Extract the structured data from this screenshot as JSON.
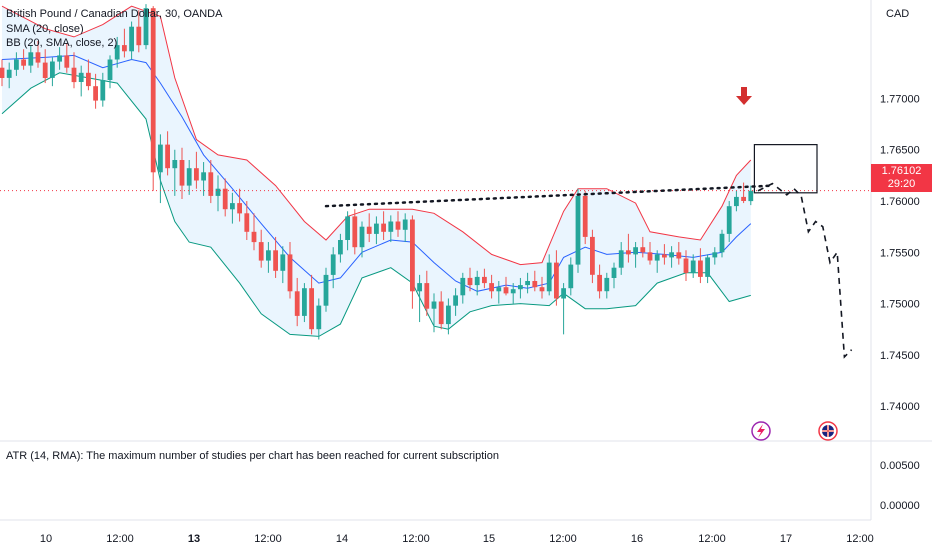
{
  "header": {
    "title": "British Pound / Canadian Dollar, 30, OANDA",
    "indicator_sma": "SMA (20, close)",
    "indicator_bb": "BB (20, SMA, close, 2)",
    "currency": "CAD"
  },
  "price_tag": {
    "price": "1.76102",
    "countdown": "29:20"
  },
  "atr_panel": {
    "note": "ATR (14, RMA): The maximum number of studies per chart has been reached for current subscription"
  },
  "colors": {
    "up": "#26a69a",
    "down": "#ef5350",
    "bb_upper": "#f23645",
    "bb_lower": "#089981",
    "sma": "#2962ff",
    "bb_fill": "#e3f2fd",
    "arrow": "#d32f2f"
  },
  "chart_data": [
    {
      "type": "candlestick",
      "title": "British Pound / Canadian Dollar, 30, OANDA",
      "y_axis_ticks": [
        "1.77000",
        "1.76500",
        "1.76000",
        "1.75500",
        "1.75000",
        "1.74500",
        "1.74000"
      ],
      "x_axis_ticks": [
        "10",
        "12:00",
        "13",
        "12:00",
        "14",
        "12:00",
        "15",
        "12:00",
        "16",
        "12:00",
        "17",
        "12:00"
      ],
      "ylim": [
        1.7367,
        1.7796
      ],
      "current_price": 1.76102,
      "key_levels": {
        "neckline_from": 1.7595,
        "neckline_to": 1.7615,
        "box_top": 1.7655,
        "box_bottom": 1.7608,
        "projection_target": 1.7448
      },
      "candles": [
        [
          1.773,
          1.7738,
          1.7712,
          1.772
        ],
        [
          1.772,
          1.7735,
          1.771,
          1.7728
        ],
        [
          1.7728,
          1.7745,
          1.7722,
          1.7738
        ],
        [
          1.7738,
          1.7748,
          1.7728,
          1.7732
        ],
        [
          1.7732,
          1.7752,
          1.7725,
          1.7745
        ],
        [
          1.7745,
          1.7756,
          1.773,
          1.7735
        ],
        [
          1.7735,
          1.7748,
          1.7715,
          1.772
        ],
        [
          1.772,
          1.774,
          1.7712,
          1.7736
        ],
        [
          1.7736,
          1.775,
          1.7728,
          1.7742
        ],
        [
          1.7742,
          1.7754,
          1.7725,
          1.773
        ],
        [
          1.773,
          1.7745,
          1.771,
          1.7716
        ],
        [
          1.7716,
          1.7732,
          1.7702,
          1.7725
        ],
        [
          1.7725,
          1.7738,
          1.7708,
          1.7712
        ],
        [
          1.7712,
          1.7724,
          1.769,
          1.7698
        ],
        [
          1.7698,
          1.7725,
          1.7692,
          1.7718
        ],
        [
          1.7718,
          1.7742,
          1.771,
          1.7738
        ],
        [
          1.7738,
          1.776,
          1.773,
          1.7752
        ],
        [
          1.7752,
          1.7768,
          1.774,
          1.7746
        ],
        [
          1.7746,
          1.7775,
          1.7738,
          1.777
        ],
        [
          1.777,
          1.7786,
          1.7745,
          1.7752
        ],
        [
          1.7752,
          1.7792,
          1.7748,
          1.7788
        ],
        [
          1.7788,
          1.779,
          1.761,
          1.7628
        ],
        [
          1.7628,
          1.7665,
          1.7598,
          1.7655
        ],
        [
          1.7655,
          1.7668,
          1.7625,
          1.7632
        ],
        [
          1.7632,
          1.765,
          1.7605,
          1.764
        ],
        [
          1.764,
          1.7652,
          1.7602,
          1.7615
        ],
        [
          1.7615,
          1.764,
          1.7606,
          1.7632
        ],
        [
          1.7632,
          1.7648,
          1.7612,
          1.762
        ],
        [
          1.762,
          1.7638,
          1.7605,
          1.7628
        ],
        [
          1.7628,
          1.764,
          1.7598,
          1.7605
        ],
        [
          1.7605,
          1.7625,
          1.759,
          1.7612
        ],
        [
          1.7612,
          1.7622,
          1.7585,
          1.7592
        ],
        [
          1.7592,
          1.7608,
          1.7578,
          1.7598
        ],
        [
          1.7598,
          1.7612,
          1.758,
          1.7588
        ],
        [
          1.7588,
          1.76,
          1.7562,
          1.757
        ],
        [
          1.757,
          1.7588,
          1.7552,
          1.756
        ],
        [
          1.756,
          1.7572,
          1.7535,
          1.7542
        ],
        [
          1.7542,
          1.756,
          1.753,
          1.7552
        ],
        [
          1.7552,
          1.7565,
          1.7525,
          1.7532
        ],
        [
          1.7532,
          1.7556,
          1.752,
          1.7548
        ],
        [
          1.7548,
          1.756,
          1.7505,
          1.7512
        ],
        [
          1.7512,
          1.7525,
          1.7478,
          1.7488
        ],
        [
          1.7488,
          1.752,
          1.7482,
          1.7515
        ],
        [
          1.7515,
          1.7528,
          1.747,
          1.7475
        ],
        [
          1.7475,
          1.7505,
          1.7465,
          1.7498
        ],
        [
          1.7498,
          1.7535,
          1.7492,
          1.7528
        ],
        [
          1.7528,
          1.7555,
          1.7515,
          1.7548
        ],
        [
          1.7548,
          1.7568,
          1.754,
          1.7562
        ],
        [
          1.7562,
          1.759,
          1.7552,
          1.7585
        ],
        [
          1.7585,
          1.7592,
          1.7548,
          1.7555
        ],
        [
          1.7555,
          1.758,
          1.7545,
          1.7575
        ],
        [
          1.7575,
          1.7588,
          1.756,
          1.7568
        ],
        [
          1.7568,
          1.7585,
          1.7558,
          1.7578
        ],
        [
          1.7578,
          1.759,
          1.7562,
          1.757
        ],
        [
          1.757,
          1.7586,
          1.756,
          1.758
        ],
        [
          1.758,
          1.759,
          1.7565,
          1.7572
        ],
        [
          1.7572,
          1.7588,
          1.756,
          1.7582
        ],
        [
          1.7582,
          1.7586,
          1.7495,
          1.7512
        ],
        [
          1.7512,
          1.7528,
          1.7482,
          1.752
        ],
        [
          1.752,
          1.7532,
          1.7488,
          1.7495
        ],
        [
          1.7495,
          1.751,
          1.7472,
          1.7502
        ],
        [
          1.7502,
          1.7512,
          1.7475,
          1.748
        ],
        [
          1.748,
          1.7505,
          1.747,
          1.7498
        ],
        [
          1.7498,
          1.7515,
          1.7488,
          1.7508
        ],
        [
          1.7508,
          1.753,
          1.75,
          1.7525
        ],
        [
          1.7525,
          1.7535,
          1.7512,
          1.7518
        ],
        [
          1.7518,
          1.7532,
          1.7508,
          1.7526
        ],
        [
          1.7526,
          1.7534,
          1.7515,
          1.752
        ],
        [
          1.752,
          1.7528,
          1.7505,
          1.7512
        ],
        [
          1.7512,
          1.7522,
          1.75,
          1.7516
        ],
        [
          1.7516,
          1.7526,
          1.7508,
          1.751
        ],
        [
          1.751,
          1.752,
          1.75,
          1.7514
        ],
        [
          1.7514,
          1.7525,
          1.7505,
          1.7518
        ],
        [
          1.7518,
          1.753,
          1.751,
          1.7522
        ],
        [
          1.7522,
          1.7532,
          1.7512,
          1.7516
        ],
        [
          1.7516,
          1.7526,
          1.7505,
          1.7512
        ],
        [
          1.7512,
          1.7548,
          1.7508,
          1.754
        ],
        [
          1.754,
          1.7552,
          1.7498,
          1.7505
        ],
        [
          1.7505,
          1.752,
          1.747,
          1.7515
        ],
        [
          1.7515,
          1.7545,
          1.7508,
          1.7538
        ],
        [
          1.7538,
          1.7612,
          1.753,
          1.7605
        ],
        [
          1.7605,
          1.761,
          1.7558,
          1.7565
        ],
        [
          1.7565,
          1.7572,
          1.752,
          1.7528
        ],
        [
          1.7528,
          1.7538,
          1.7505,
          1.7512
        ],
        [
          1.7512,
          1.753,
          1.7505,
          1.7525
        ],
        [
          1.7525,
          1.754,
          1.7515,
          1.7535
        ],
        [
          1.7535,
          1.756,
          1.7528,
          1.7552
        ],
        [
          1.7552,
          1.7568,
          1.754,
          1.7548
        ],
        [
          1.7548,
          1.756,
          1.7535,
          1.7555
        ],
        [
          1.7555,
          1.7565,
          1.7545,
          1.755
        ],
        [
          1.755,
          1.756,
          1.7538,
          1.7542
        ],
        [
          1.7542,
          1.7552,
          1.753,
          1.7548
        ],
        [
          1.7548,
          1.7558,
          1.7538,
          1.7545
        ],
        [
          1.7545,
          1.7556,
          1.7535,
          1.755
        ],
        [
          1.755,
          1.756,
          1.7538,
          1.7544
        ],
        [
          1.7544,
          1.7552,
          1.7522,
          1.753
        ],
        [
          1.753,
          1.7548,
          1.7525,
          1.7542
        ],
        [
          1.7542,
          1.7554,
          1.752,
          1.7526
        ],
        [
          1.7526,
          1.7548,
          1.752,
          1.7545
        ],
        [
          1.7545,
          1.7555,
          1.7538,
          1.755
        ],
        [
          1.755,
          1.7572,
          1.7545,
          1.7568
        ],
        [
          1.7568,
          1.76,
          1.756,
          1.7595
        ],
        [
          1.7595,
          1.761,
          1.759,
          1.7604
        ],
        [
          1.7604,
          1.7618,
          1.7598,
          1.76
        ],
        [
          1.76,
          1.7615,
          1.7596,
          1.761
        ]
      ],
      "bb_upper": [
        [
          0,
          1.779
        ],
        [
          6,
          1.7768
        ],
        [
          10,
          1.776
        ],
        [
          14,
          1.7772
        ],
        [
          18,
          1.779
        ],
        [
          22,
          1.778
        ],
        [
          24,
          1.772
        ],
        [
          27,
          1.766
        ],
        [
          30,
          1.7645
        ],
        [
          34,
          1.764
        ],
        [
          38,
          1.7615
        ],
        [
          42,
          1.758
        ],
        [
          45,
          1.7562
        ],
        [
          48,
          1.7585
        ],
        [
          51,
          1.7592
        ],
        [
          55,
          1.7592
        ],
        [
          57,
          1.7592
        ],
        [
          60,
          1.7588
        ],
        [
          64,
          1.757
        ],
        [
          68,
          1.7548
        ],
        [
          72,
          1.7538
        ],
        [
          75,
          1.754
        ],
        [
          78,
          1.759
        ],
        [
          80,
          1.7612
        ],
        [
          84,
          1.7612
        ],
        [
          88,
          1.7598
        ],
        [
          90,
          1.757
        ],
        [
          94,
          1.7565
        ],
        [
          97,
          1.7562
        ],
        [
          100,
          1.7595
        ],
        [
          102,
          1.7625
        ],
        [
          104,
          1.764
        ]
      ],
      "bb_lower": [
        [
          0,
          1.7685
        ],
        [
          4,
          1.771
        ],
        [
          8,
          1.7725
        ],
        [
          12,
          1.772
        ],
        [
          16,
          1.7715
        ],
        [
          20,
          1.768
        ],
        [
          22,
          1.762
        ],
        [
          24,
          1.758
        ],
        [
          26,
          1.756
        ],
        [
          29,
          1.7555
        ],
        [
          33,
          1.752
        ],
        [
          36,
          1.749
        ],
        [
          40,
          1.747
        ],
        [
          44,
          1.7468
        ],
        [
          47,
          1.748
        ],
        [
          50,
          1.7525
        ],
        [
          54,
          1.7535
        ],
        [
          57,
          1.752
        ],
        [
          60,
          1.7478
        ],
        [
          62,
          1.7475
        ],
        [
          65,
          1.7492
        ],
        [
          68,
          1.7498
        ],
        [
          72,
          1.75
        ],
        [
          76,
          1.7498
        ],
        [
          78,
          1.751
        ],
        [
          81,
          1.7495
        ],
        [
          84,
          1.7495
        ],
        [
          88,
          1.7498
        ],
        [
          91,
          1.752
        ],
        [
          95,
          1.753
        ],
        [
          98,
          1.753
        ],
        [
          101,
          1.7502
        ],
        [
          104,
          1.7508
        ]
      ],
      "sma": [
        [
          0,
          1.7738
        ],
        [
          6,
          1.774
        ],
        [
          10,
          1.7742
        ],
        [
          14,
          1.773
        ],
        [
          18,
          1.7738
        ],
        [
          20,
          1.7735
        ],
        [
          22,
          1.7715
        ],
        [
          25,
          1.7682
        ],
        [
          28,
          1.7645
        ],
        [
          32,
          1.7612
        ],
        [
          36,
          1.7578
        ],
        [
          40,
          1.7545
        ],
        [
          44,
          1.752
        ],
        [
          47,
          1.7525
        ],
        [
          50,
          1.755
        ],
        [
          54,
          1.7562
        ],
        [
          57,
          1.756
        ],
        [
          60,
          1.754
        ],
        [
          63,
          1.7522
        ],
        [
          66,
          1.7512
        ],
        [
          70,
          1.7518
        ],
        [
          73,
          1.7515
        ],
        [
          76,
          1.752
        ],
        [
          78,
          1.7545
        ],
        [
          81,
          1.7555
        ],
        [
          84,
          1.7548
        ],
        [
          88,
          1.755
        ],
        [
          92,
          1.7548
        ],
        [
          96,
          1.7545
        ],
        [
          100,
          1.755
        ],
        [
          102,
          1.7565
        ],
        [
          104,
          1.7578
        ]
      ]
    },
    {
      "type": "line",
      "title": "ATR (14, RMA)",
      "y_axis_ticks": [
        "0.00500",
        "0.00000"
      ],
      "series": []
    }
  ]
}
